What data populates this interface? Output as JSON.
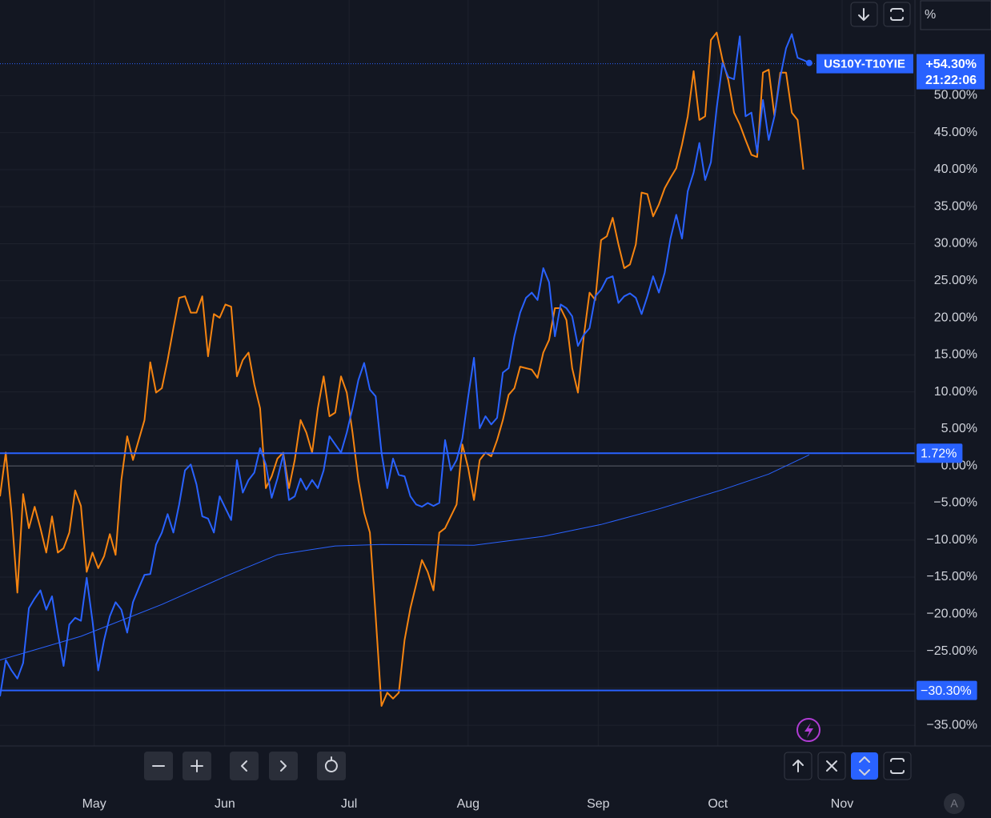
{
  "chart_data": {
    "type": "line",
    "symbol": "US10Y-T10YIE",
    "scale_unit": "%",
    "countdown": "21:22:06",
    "auto_label": "A",
    "last_value": {
      "value": 54.3,
      "label": "+54.30%"
    },
    "hlines": [
      {
        "value": 1.72,
        "label": "1.72%"
      },
      {
        "value": -30.3,
        "label": "−30.30%"
      }
    ],
    "xlim": [
      0,
      158.3
    ],
    "xticks": [
      {
        "value": 16.3,
        "label": "May"
      },
      {
        "value": 38.9,
        "label": "Jun"
      },
      {
        "value": 60.4,
        "label": "Jul"
      },
      {
        "value": 81.0,
        "label": "Aug"
      },
      {
        "value": 103.5,
        "label": "Sep"
      },
      {
        "value": 124.2,
        "label": "Oct"
      },
      {
        "value": 145.7,
        "label": "Nov"
      }
    ],
    "ylim": [
      -37.8,
      62.9
    ],
    "yticks": [
      {
        "value": 50,
        "label": "50.00%"
      },
      {
        "value": 45,
        "label": "45.00%"
      },
      {
        "value": 40,
        "label": "40.00%"
      },
      {
        "value": 35,
        "label": "35.00%"
      },
      {
        "value": 30,
        "label": "30.00%"
      },
      {
        "value": 25,
        "label": "25.00%"
      },
      {
        "value": 20,
        "label": "20.00%"
      },
      {
        "value": 15,
        "label": "15.00%"
      },
      {
        "value": 10,
        "label": "10.00%"
      },
      {
        "value": 5,
        "label": "5.00%"
      },
      {
        "value": 0,
        "label": "0.00%"
      },
      {
        "value": -5,
        "label": "−5.00%"
      },
      {
        "value": -10,
        "label": "−10.00%"
      },
      {
        "value": -15,
        "label": "−15.00%"
      },
      {
        "value": -20,
        "label": "−20.00%"
      },
      {
        "value": -25,
        "label": "−25.00%"
      },
      {
        "value": -30,
        "label": "−30.00%"
      },
      {
        "value": -35,
        "label": "−35.00%"
      }
    ],
    "grid": true,
    "series": [
      {
        "color": "#f68410",
        "values": [
          -4.1,
          1.8,
          -6.3,
          -17.1,
          -3.8,
          -8.4,
          -5.5,
          -8.4,
          -11.7,
          -6.8,
          -11.7,
          -11.1,
          -9.0,
          -3.3,
          -5.4,
          -14.3,
          -11.7,
          -13.8,
          -12.2,
          -9.2,
          -12.0,
          -1.9,
          4.0,
          0.8,
          3.5,
          6.2,
          14.0,
          9.9,
          10.5,
          14.3,
          18.6,
          22.7,
          22.9,
          20.7,
          20.7,
          22.9,
          14.8,
          20.5,
          20.0,
          21.8,
          21.5,
          12.1,
          14.3,
          15.3,
          11.0,
          7.8,
          -3.0,
          -1.4,
          1.0,
          1.8,
          -3.0,
          0.8,
          6.2,
          4.5,
          1.8,
          7.8,
          12.1,
          6.7,
          7.2,
          12.1,
          9.9,
          4.5,
          -1.9,
          -6.3,
          -9.0,
          -20.3,
          -32.4,
          -30.6,
          -31.4,
          -30.6,
          -23.5,
          -19.2,
          -16.0,
          -12.7,
          -14.3,
          -16.8,
          -9.0,
          -8.4,
          -6.8,
          -5.2,
          2.9,
          -0.3,
          -4.6,
          0.8,
          1.8,
          1.3,
          3.5,
          6.2,
          9.6,
          10.5,
          13.4,
          13.2,
          13.0,
          11.9,
          15.3,
          17.0,
          21.3,
          21.3,
          19.7,
          13.2,
          9.9,
          17.5,
          23.4,
          22.4,
          30.5,
          31.0,
          33.5,
          29.9,
          26.7,
          27.2,
          29.9,
          36.9,
          36.7,
          33.7,
          35.3,
          37.5,
          38.9,
          40.2,
          43.4,
          47.2,
          53.3,
          46.7,
          47.2,
          57.5,
          58.5,
          54.8,
          52.1,
          47.7,
          46.1,
          44.0,
          42.0,
          41.7,
          53.1,
          53.5,
          47.2,
          53.1,
          53.1,
          47.7,
          46.7,
          40.0,
          null
        ]
      },
      {
        "name": "US10Y-T10YIE",
        "color": "#2962ff",
        "values": [
          -31.1,
          -26.2,
          -27.6,
          -28.7,
          -26.6,
          -19.2,
          -17.9,
          -16.8,
          -19.4,
          -17.6,
          -22.5,
          -27.0,
          -21.4,
          -20.5,
          -20.9,
          -15.1,
          -20.9,
          -27.6,
          -23.5,
          -20.3,
          -18.4,
          -19.4,
          -22.5,
          -18.4,
          -16.5,
          -14.7,
          -14.6,
          -10.6,
          -9.0,
          -6.5,
          -9.0,
          -5.2,
          -0.6,
          0.2,
          -2.5,
          -6.8,
          -7.1,
          -9.0,
          -4.1,
          -5.7,
          -7.3,
          0.8,
          -3.6,
          -1.9,
          -0.9,
          2.4,
          0.2,
          -4.3,
          -1.7,
          1.5,
          -4.6,
          -4.1,
          -1.7,
          -3.2,
          -1.9,
          -3.0,
          -0.6,
          4.0,
          2.9,
          1.8,
          4.5,
          7.8,
          11.6,
          13.9,
          10.3,
          9.4,
          1.8,
          -3.0,
          1.0,
          -1.2,
          -1.4,
          -4.1,
          -5.2,
          -5.5,
          -5.0,
          -5.4,
          -5.0,
          3.5,
          -0.6,
          0.8,
          3.7,
          9.4,
          14.6,
          5.1,
          6.7,
          5.6,
          6.5,
          12.6,
          13.2,
          17.5,
          20.7,
          22.7,
          23.4,
          22.4,
          26.7,
          24.8,
          17.5,
          21.8,
          21.3,
          20.2,
          16.2,
          17.7,
          18.6,
          22.9,
          23.8,
          25.3,
          25.6,
          22.0,
          22.9,
          23.3,
          22.7,
          20.5,
          22.9,
          25.6,
          23.4,
          26.1,
          30.7,
          33.9,
          30.7,
          37.1,
          39.6,
          43.6,
          38.6,
          41.0,
          48.3,
          54.4,
          52.5,
          52.2,
          58.0,
          47.2,
          47.7,
          42.3,
          49.4,
          44.0,
          47.2,
          52.5,
          56.4,
          58.3,
          55.1,
          54.8,
          54.4
        ]
      },
      {
        "color": "#2962ff",
        "x": [
          0,
          14,
          28,
          39,
          48,
          58,
          66,
          82,
          94,
          104,
          114,
          125,
          133,
          140
        ],
        "values": [
          -26.2,
          -23.0,
          -18.7,
          -14.9,
          -12.0,
          -10.8,
          -10.6,
          -10.7,
          -9.5,
          -7.9,
          -5.8,
          -3.2,
          -1.1,
          1.5
        ]
      }
    ]
  }
}
